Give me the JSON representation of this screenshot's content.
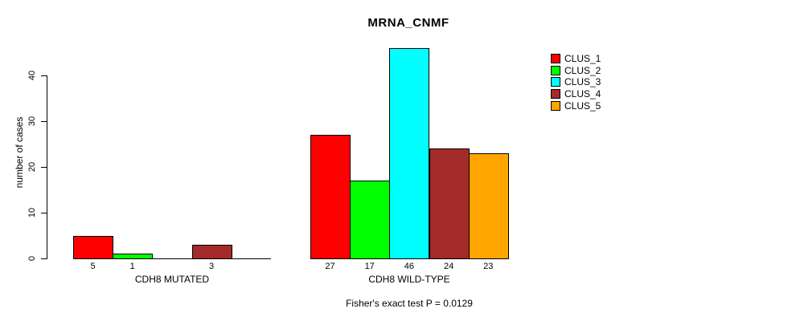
{
  "chart_data": {
    "type": "bar",
    "title": "MRNA_CNMF",
    "ylabel": "number of cases",
    "yticks": [
      0,
      10,
      20,
      30,
      40
    ],
    "ylim": [
      0,
      46
    ],
    "grid": false,
    "legend_position": "right",
    "categories": [
      "CDH8 MUTATED",
      "CDH8 WILD-TYPE"
    ],
    "series": [
      {
        "name": "CLUS_1",
        "color": "#FF0000",
        "values": [
          5,
          27
        ]
      },
      {
        "name": "CLUS_2",
        "color": "#00FF00",
        "values": [
          1,
          17
        ]
      },
      {
        "name": "CLUS_3",
        "color": "#00FFFF",
        "values": [
          0,
          46
        ]
      },
      {
        "name": "CLUS_4",
        "color": "#A52A2A",
        "values": [
          3,
          24
        ]
      },
      {
        "name": "CLUS_5",
        "color": "#FFA500",
        "values": [
          0,
          23
        ]
      }
    ],
    "bar_value_labels": [
      [
        "5",
        "1",
        "",
        "3",
        ""
      ],
      [
        "27",
        "17",
        "46",
        "24",
        "23"
      ]
    ],
    "annotation": "Fisher's exact test P = 0.0129"
  }
}
